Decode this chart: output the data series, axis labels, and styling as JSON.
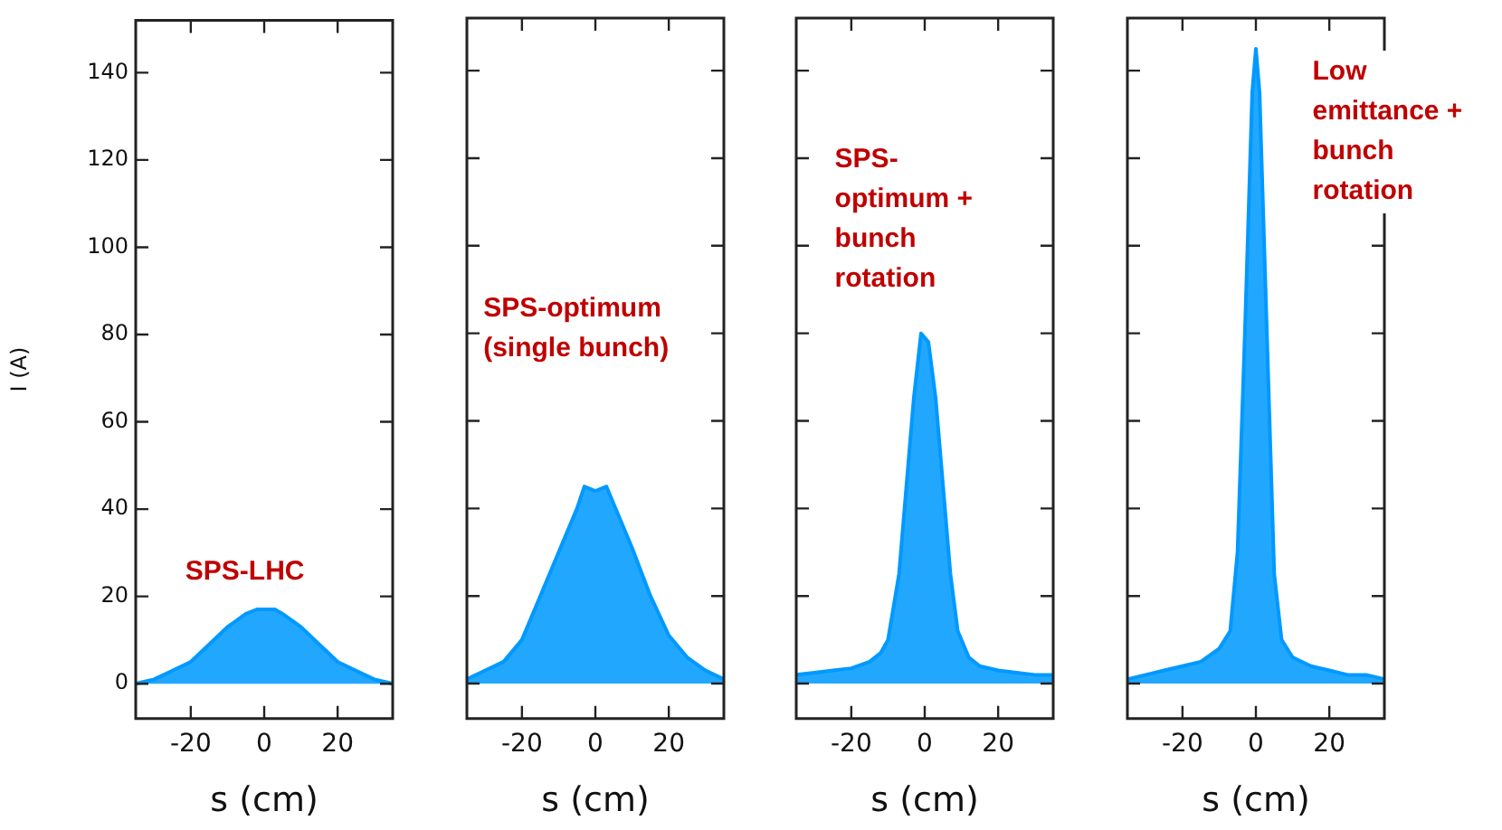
{
  "chart_data": [
    {
      "type": "area",
      "xlabel": "s (cm)",
      "ylabel": "I (A)",
      "xlim": [
        -35,
        35
      ],
      "xticks": [
        -20,
        0,
        20
      ],
      "ylim": [
        -8,
        152
      ],
      "yticks": [
        0,
        20,
        40,
        60,
        80,
        100,
        120,
        140
      ],
      "grid": false,
      "legend": false,
      "x": [
        -35,
        -30,
        -25,
        -20,
        -15,
        -10,
        -5,
        -2,
        0,
        3,
        5,
        10,
        15,
        20,
        25,
        30,
        35
      ],
      "series": [
        {
          "color": "#0099ff",
          "values": [
            0,
            1,
            3,
            5,
            9,
            13,
            16,
            17,
            17,
            17,
            16,
            13,
            9,
            5,
            3,
            1,
            0
          ]
        }
      ],
      "annotations": [
        "SPS-LHC"
      ]
    },
    {
      "type": "area",
      "xlabel": "s (cm)",
      "xlim": [
        -35,
        35
      ],
      "xticks": [
        -20,
        0,
        20
      ],
      "ylim": [
        -8,
        152
      ],
      "yticks": [
        0,
        20,
        40,
        60,
        80,
        100,
        120,
        140
      ],
      "tick_labels": "x",
      "grid": false,
      "legend": false,
      "x": [
        -35,
        -30,
        -25,
        -20,
        -15,
        -10,
        -5,
        -3,
        0,
        3,
        5,
        10,
        15,
        20,
        25,
        30,
        35
      ],
      "series": [
        {
          "color": "#0099ff",
          "values": [
            1,
            3,
            5,
            10,
            20,
            30,
            40,
            45,
            44,
            45,
            41,
            31,
            20,
            11,
            6,
            3,
            1
          ]
        }
      ],
      "annotations": [
        "SPS-optimum\n(single bunch)"
      ]
    },
    {
      "type": "area",
      "xlabel": "s (cm)",
      "xlim": [
        -35,
        35
      ],
      "xticks": [
        -20,
        0,
        20
      ],
      "ylim": [
        -8,
        152
      ],
      "yticks": [
        0,
        20,
        40,
        60,
        80,
        100,
        120,
        140
      ],
      "tick_labels": "x",
      "grid": false,
      "legend": false,
      "x": [
        -35,
        -30,
        -25,
        -20,
        -15,
        -12,
        -10,
        -7,
        -5,
        -3,
        -1,
        1,
        3,
        5,
        7,
        9,
        12,
        15,
        20,
        25,
        30,
        35
      ],
      "series": [
        {
          "color": "#0099ff",
          "values": [
            2,
            2.5,
            3,
            3.5,
            5,
            7,
            10,
            25,
            45,
            65,
            80,
            78,
            65,
            45,
            25,
            12,
            6,
            4,
            3,
            2.5,
            2,
            2
          ]
        }
      ],
      "annotations": [
        "SPS-\noptimum +\nbunch\nrotation"
      ]
    },
    {
      "type": "area",
      "xlabel": "s (cm)",
      "xlim": [
        -35,
        35
      ],
      "xticks": [
        -20,
        0,
        20
      ],
      "ylim": [
        -8,
        152
      ],
      "yticks": [
        0,
        20,
        40,
        60,
        80,
        100,
        120,
        140
      ],
      "tick_labels": "x",
      "grid": false,
      "legend": false,
      "x": [
        -35,
        -30,
        -25,
        -20,
        -15,
        -10,
        -7,
        -5,
        -3,
        -1,
        0,
        1,
        3,
        5,
        7,
        10,
        15,
        20,
        25,
        30,
        35
      ],
      "series": [
        {
          "color": "#0099ff",
          "values": [
            1,
            2,
            3,
            4,
            5,
            8,
            12,
            30,
            80,
            135,
            145,
            135,
            80,
            25,
            10,
            6,
            4,
            3,
            2,
            2,
            1
          ]
        }
      ],
      "annotations": [
        "Low\nemittance +\nbunch\nrotation"
      ]
    }
  ]
}
